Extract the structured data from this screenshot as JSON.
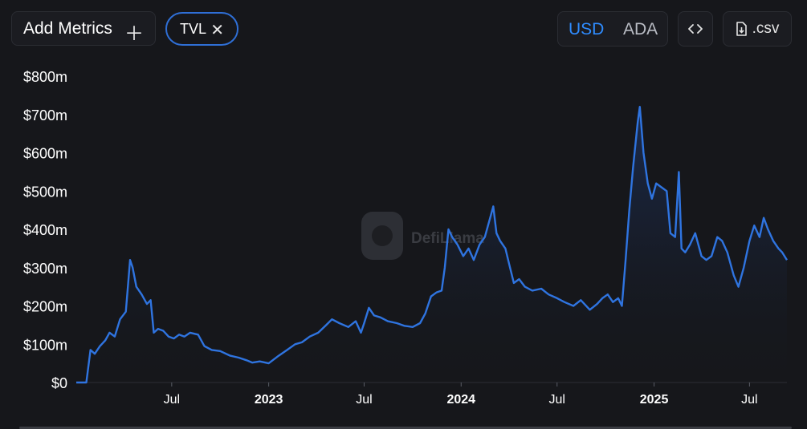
{
  "toolbar": {
    "add_metrics_label": "Add Metrics",
    "add_icon": "plus-icon",
    "metric_pill_label": "TVL",
    "remove_icon": "close-icon",
    "currency_options": [
      "USD",
      "ADA"
    ],
    "currency_selected": "USD",
    "embed_icon": "code-icon",
    "csv_label": ".csv",
    "csv_icon": "file-download-icon"
  },
  "watermark": "DefiLlama",
  "colors": {
    "background": "#16171b",
    "line": "#2f74e0",
    "accent": "#2f8cff",
    "pill_border": "#2f6fd6"
  },
  "chart_data": {
    "type": "area",
    "title": "",
    "xlabel": "",
    "ylabel": "",
    "ylim": [
      0,
      800000000
    ],
    "x_range": [
      "2022-01-01",
      "2025-09-10"
    ],
    "y_ticks": [
      "$0",
      "$100m",
      "$200m",
      "$300m",
      "$400m",
      "$500m",
      "$600m",
      "$700m",
      "$800m"
    ],
    "x_ticks": [
      {
        "date": "2022-07-01",
        "label": "Jul",
        "bold": false
      },
      {
        "date": "2023-01-01",
        "label": "2023",
        "bold": true
      },
      {
        "date": "2023-07-01",
        "label": "Jul",
        "bold": false
      },
      {
        "date": "2024-01-01",
        "label": "2024",
        "bold": true
      },
      {
        "date": "2024-07-01",
        "label": "Jul",
        "bold": false
      },
      {
        "date": "2025-01-01",
        "label": "2025",
        "bold": true
      },
      {
        "date": "2025-07-01",
        "label": "Jul",
        "bold": false
      }
    ],
    "grid": false,
    "series": [
      {
        "values": [
          [
            "2022-01-01",
            0
          ],
          [
            "2022-01-20",
            0
          ],
          [
            "2022-01-28",
            85000000
          ],
          [
            "2022-02-05",
            75000000
          ],
          [
            "2022-02-15",
            95000000
          ],
          [
            "2022-02-25",
            110000000
          ],
          [
            "2022-03-05",
            130000000
          ],
          [
            "2022-03-15",
            120000000
          ],
          [
            "2022-03-25",
            165000000
          ],
          [
            "2022-04-05",
            185000000
          ],
          [
            "2022-04-13",
            320000000
          ],
          [
            "2022-04-18",
            300000000
          ],
          [
            "2022-04-25",
            250000000
          ],
          [
            "2022-05-05",
            230000000
          ],
          [
            "2022-05-15",
            205000000
          ],
          [
            "2022-05-22",
            215000000
          ],
          [
            "2022-05-28",
            130000000
          ],
          [
            "2022-06-05",
            140000000
          ],
          [
            "2022-06-15",
            135000000
          ],
          [
            "2022-06-25",
            120000000
          ],
          [
            "2022-07-05",
            115000000
          ],
          [
            "2022-07-15",
            125000000
          ],
          [
            "2022-07-25",
            120000000
          ],
          [
            "2022-08-05",
            130000000
          ],
          [
            "2022-08-20",
            125000000
          ],
          [
            "2022-09-01",
            95000000
          ],
          [
            "2022-09-15",
            85000000
          ],
          [
            "2022-10-01",
            82000000
          ],
          [
            "2022-10-20",
            70000000
          ],
          [
            "2022-11-05",
            65000000
          ],
          [
            "2022-11-20",
            58000000
          ],
          [
            "2022-12-01",
            52000000
          ],
          [
            "2022-12-15",
            55000000
          ],
          [
            "2023-01-01",
            50000000
          ],
          [
            "2023-01-20",
            70000000
          ],
          [
            "2023-02-05",
            85000000
          ],
          [
            "2023-02-20",
            100000000
          ],
          [
            "2023-03-05",
            105000000
          ],
          [
            "2023-03-20",
            120000000
          ],
          [
            "2023-04-05",
            130000000
          ],
          [
            "2023-04-20",
            150000000
          ],
          [
            "2023-05-01",
            165000000
          ],
          [
            "2023-05-15",
            155000000
          ],
          [
            "2023-06-01",
            145000000
          ],
          [
            "2023-06-15",
            160000000
          ],
          [
            "2023-06-25",
            130000000
          ],
          [
            "2023-07-01",
            155000000
          ],
          [
            "2023-07-10",
            195000000
          ],
          [
            "2023-07-20",
            175000000
          ],
          [
            "2023-08-01",
            170000000
          ],
          [
            "2023-08-15",
            160000000
          ],
          [
            "2023-09-01",
            155000000
          ],
          [
            "2023-09-15",
            148000000
          ],
          [
            "2023-10-01",
            145000000
          ],
          [
            "2023-10-15",
            155000000
          ],
          [
            "2023-10-25",
            180000000
          ],
          [
            "2023-11-05",
            225000000
          ],
          [
            "2023-11-15",
            235000000
          ],
          [
            "2023-11-25",
            240000000
          ],
          [
            "2023-12-01",
            300000000
          ],
          [
            "2023-12-08",
            400000000
          ],
          [
            "2023-12-15",
            380000000
          ],
          [
            "2023-12-25",
            360000000
          ],
          [
            "2024-01-05",
            330000000
          ],
          [
            "2024-01-15",
            350000000
          ],
          [
            "2024-01-25",
            320000000
          ],
          [
            "2024-02-05",
            360000000
          ],
          [
            "2024-02-15",
            380000000
          ],
          [
            "2024-02-25",
            430000000
          ],
          [
            "2024-03-02",
            460000000
          ],
          [
            "2024-03-08",
            390000000
          ],
          [
            "2024-03-15",
            370000000
          ],
          [
            "2024-03-25",
            350000000
          ],
          [
            "2024-04-01",
            310000000
          ],
          [
            "2024-04-10",
            260000000
          ],
          [
            "2024-04-20",
            270000000
          ],
          [
            "2024-05-01",
            250000000
          ],
          [
            "2024-05-15",
            240000000
          ],
          [
            "2024-06-01",
            245000000
          ],
          [
            "2024-06-15",
            230000000
          ],
          [
            "2024-07-01",
            220000000
          ],
          [
            "2024-07-15",
            210000000
          ],
          [
            "2024-08-01",
            200000000
          ],
          [
            "2024-08-15",
            215000000
          ],
          [
            "2024-09-01",
            190000000
          ],
          [
            "2024-09-15",
            205000000
          ],
          [
            "2024-09-25",
            220000000
          ],
          [
            "2024-10-05",
            230000000
          ],
          [
            "2024-10-15",
            210000000
          ],
          [
            "2024-10-25",
            220000000
          ],
          [
            "2024-11-01",
            200000000
          ],
          [
            "2024-11-08",
            320000000
          ],
          [
            "2024-11-15",
            450000000
          ],
          [
            "2024-11-22",
            560000000
          ],
          [
            "2024-12-01",
            680000000
          ],
          [
            "2024-12-05",
            720000000
          ],
          [
            "2024-12-12",
            600000000
          ],
          [
            "2024-12-20",
            520000000
          ],
          [
            "2024-12-28",
            480000000
          ],
          [
            "2025-01-05",
            520000000
          ],
          [
            "2025-01-15",
            510000000
          ],
          [
            "2025-01-25",
            500000000
          ],
          [
            "2025-02-01",
            390000000
          ],
          [
            "2025-02-10",
            380000000
          ],
          [
            "2025-02-17",
            550000000
          ],
          [
            "2025-02-22",
            350000000
          ],
          [
            "2025-03-01",
            340000000
          ],
          [
            "2025-03-10",
            360000000
          ],
          [
            "2025-03-20",
            390000000
          ],
          [
            "2025-04-01",
            330000000
          ],
          [
            "2025-04-10",
            320000000
          ],
          [
            "2025-04-20",
            330000000
          ],
          [
            "2025-05-01",
            380000000
          ],
          [
            "2025-05-10",
            370000000
          ],
          [
            "2025-05-20",
            340000000
          ],
          [
            "2025-06-01",
            280000000
          ],
          [
            "2025-06-10",
            250000000
          ],
          [
            "2025-06-20",
            300000000
          ],
          [
            "2025-07-01",
            370000000
          ],
          [
            "2025-07-10",
            410000000
          ],
          [
            "2025-07-20",
            380000000
          ],
          [
            "2025-07-28",
            430000000
          ],
          [
            "2025-08-05",
            400000000
          ],
          [
            "2025-08-15",
            370000000
          ],
          [
            "2025-08-25",
            350000000
          ],
          [
            "2025-09-01",
            340000000
          ],
          [
            "2025-09-10",
            320000000
          ]
        ]
      }
    ]
  }
}
